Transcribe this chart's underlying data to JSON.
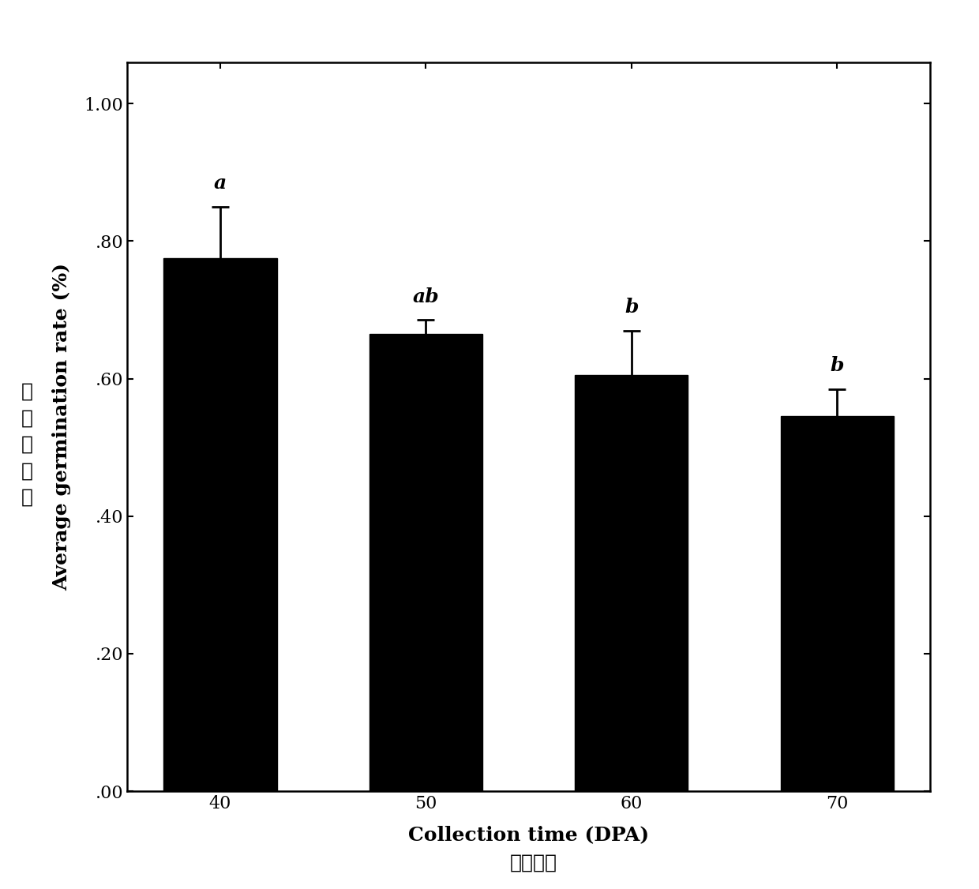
{
  "categories": [
    "40",
    "50",
    "60",
    "70"
  ],
  "values": [
    0.775,
    0.665,
    0.605,
    0.545
  ],
  "errors": [
    0.075,
    0.02,
    0.065,
    0.04
  ],
  "sig_labels": [
    "a",
    "ab",
    "b",
    "b"
  ],
  "bar_color": "#000000",
  "xlabel": "Collection time (DPA)",
  "ylabel": "Average germination rate (%)",
  "xlabel_chinese": "采集时间",
  "ylabel_chinese": "平\n均\n发\n芽\n率",
  "ylim": [
    0.0,
    1.06
  ],
  "yticks": [
    0.0,
    0.2,
    0.4,
    0.6,
    0.8,
    1.0
  ],
  "ytick_labels": [
    ".00",
    ".20",
    ".40",
    ".60",
    ".80",
    "1.00"
  ],
  "background_color": "#ffffff",
  "bar_width": 0.55,
  "label_fontsize": 18,
  "tick_fontsize": 16,
  "sig_fontsize": 18,
  "chinese_fontsize": 18
}
